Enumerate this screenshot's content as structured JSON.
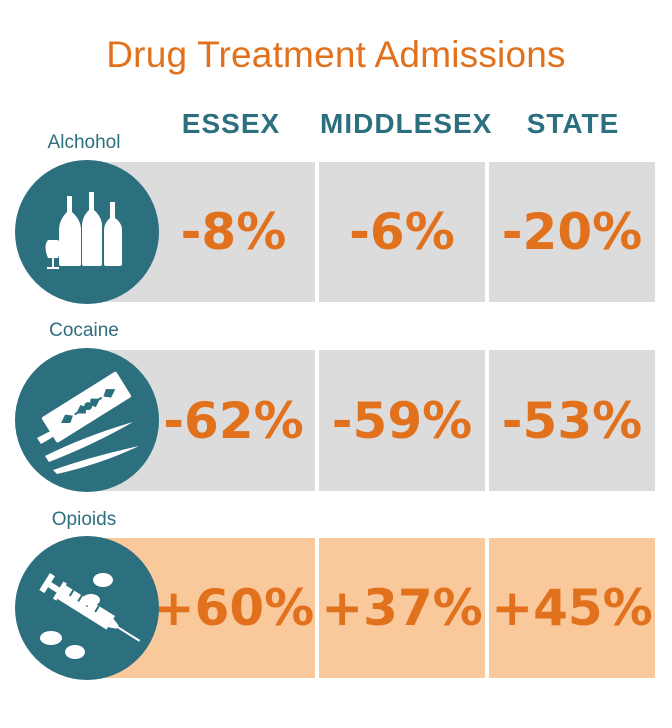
{
  "title": "Drug Treatment Admissions",
  "columns": [
    "ESSEX",
    "MIDDLESEX",
    "STATE"
  ],
  "rows": [
    {
      "label": "Alchohol",
      "icon": "alcohol-bottles-icon",
      "values": [
        "-8%",
        "-6%",
        "-20%"
      ],
      "fill": "gray"
    },
    {
      "label": "Cocaine",
      "icon": "razor-blade-icon",
      "values": [
        "-62%",
        "-59%",
        "-53%"
      ],
      "fill": "gray"
    },
    {
      "label": "Opioids",
      "icon": "syringe-pills-icon",
      "values": [
        "+60%",
        "+37%",
        "+45%"
      ],
      "fill": "peach"
    }
  ],
  "colors": {
    "accent": "#e2711d",
    "teal": "#2c6f7e",
    "gray": "#dcdcdc",
    "peach": "#f9c99b"
  },
  "chart_data": {
    "type": "table",
    "title": "Drug Treatment Admissions",
    "columns": [
      "ESSEX",
      "MIDDLESEX",
      "STATE"
    ],
    "rows": [
      {
        "name": "Alchohol",
        "values": [
          -8,
          -6,
          -20
        ]
      },
      {
        "name": "Cocaine",
        "values": [
          -62,
          -59,
          -53
        ]
      },
      {
        "name": "Opioids",
        "values": [
          60,
          37,
          45
        ]
      }
    ]
  }
}
